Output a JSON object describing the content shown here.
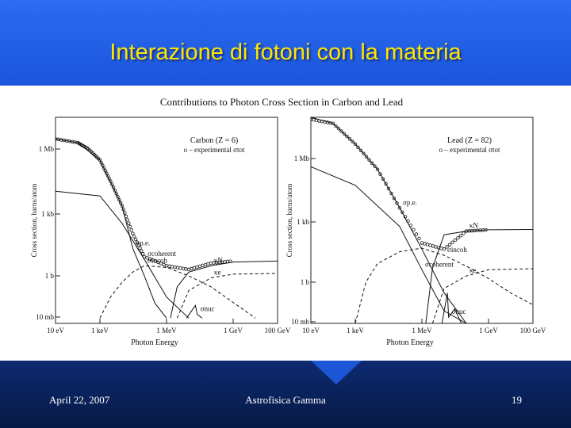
{
  "slide": {
    "title": "Interazione di fotoni con la materia",
    "footer_left": "April 22, 2007",
    "footer_center": "Astrofisica Gamma",
    "footer_right": "19"
  },
  "figure_title": "Contributions to Photon Cross Section in Carbon and Lead",
  "chart_data": [
    {
      "type": "line",
      "title": "Carbon (Z = 6)",
      "legend": "o – experimental σtot",
      "xlabel": "Photon Energy",
      "ylabel": "Cross section, barns/atom",
      "x_scale": "log",
      "y_scale": "log",
      "x_ticks": [
        "10 eV",
        "1 keV",
        "1 MeV",
        "1 GeV",
        "100 GeV"
      ],
      "y_ticks": [
        "1 Mb",
        "1 kb",
        "1 b",
        "10 mb"
      ],
      "series": [
        {
          "name": "σp.e.",
          "points": [
            [
              1e-05,
              3000000.0
            ],
            [
              0.0001,
              2000000.0
            ],
            [
              0.001,
              300000.0
            ],
            [
              0.01,
              2000.0
            ],
            [
              0.03,
              20.0
            ],
            [
              0.1,
              1
            ],
            [
              0.3,
              0.05
            ],
            [
              1,
              0.01
            ]
          ]
        },
        {
          "name": "σcoherent",
          "points": [
            [
              1e-05,
              10000.0
            ],
            [
              0.001,
              6000.0
            ],
            [
              0.01,
              300.0
            ],
            [
              0.1,
              6
            ],
            [
              1,
              0.1
            ],
            [
              10,
              0.01
            ]
          ]
        },
        {
          "name": "σincoh",
          "points": [
            [
              0.001,
              0.01
            ],
            [
              0.003,
              0.1
            ],
            [
              0.01,
              0.5
            ],
            [
              0.03,
              1.5
            ],
            [
              0.1,
              3
            ],
            [
              1,
              2.5
            ],
            [
              10,
              1
            ],
            [
              100,
              0.3
            ],
            [
              10000.0,
              0.01
            ]
          ]
        },
        {
          "name": "κN",
          "points": [
            [
              1.5,
              0.01
            ],
            [
              3,
              0.3
            ],
            [
              10,
              1.5
            ],
            [
              100.0,
              3
            ],
            [
              1000.0,
              4.5
            ],
            [
              100000.0,
              5
            ]
          ]
        },
        {
          "name": "κe",
          "points": [
            [
              3,
              0.01
            ],
            [
              10,
              0.2
            ],
            [
              100.0,
              0.8
            ],
            [
              1000.0,
              1.2
            ],
            [
              100000.0,
              1.3
            ]
          ]
        },
        {
          "name": "σnuc",
          "points": [
            [
              8,
              0.01
            ],
            [
              20,
              0.04
            ],
            [
              24,
              0.015
            ],
            [
              40,
              0.01
            ]
          ]
        },
        {
          "name": "experimental σtot",
          "points": [
            [
              1e-05,
              3000000.0
            ],
            [
              0.0001,
              2000000.0
            ],
            [
              0.0003,
              1000000.0
            ],
            [
              0.001,
              300000.0
            ],
            [
              0.003,
              30000.0
            ],
            [
              0.01,
              2000.0
            ],
            [
              0.03,
              100.0
            ],
            [
              0.1,
              8
            ],
            [
              1,
              3
            ],
            [
              10,
              2
            ],
            [
              100,
              4
            ],
            [
              1000.0,
              5
            ]
          ]
        }
      ]
    },
    {
      "type": "line",
      "title": "Lead (Z = 82)",
      "legend": "o – experimental σtot",
      "xlabel": "Photon Energy",
      "ylabel": "Cross section, barns/atom",
      "x_scale": "log",
      "y_scale": "log",
      "x_ticks": [
        "10 eV",
        "1 keV",
        "1 MeV",
        "1 GeV",
        "100 GeV"
      ],
      "y_ticks": [
        "1 Mb",
        "1 kb",
        "1 b",
        "10 mb"
      ],
      "series": [
        {
          "name": "σp.e.",
          "points": [
            [
              1e-05,
              100000000.0
            ],
            [
              0.0001,
              50000000.0
            ],
            [
              0.001,
              5000000.0
            ],
            [
              0.01,
              300000.0
            ],
            [
              0.1,
              4000.0
            ],
            [
              1,
              40
            ],
            [
              10,
              0.3
            ],
            [
              100,
              0.01
            ]
          ]
        },
        {
          "name": "σcoherent",
          "points": [
            [
              1e-05,
              400000.0
            ],
            [
              0.001,
              50000.0
            ],
            [
              0.1,
              500.0
            ],
            [
              1,
              4
            ],
            [
              10,
              0.04
            ],
            [
              100,
              0.01
            ]
          ]
        },
        {
          "name": "σincoh",
          "points": [
            [
              0.001,
              0.01
            ],
            [
              0.003,
              1
            ],
            [
              0.01,
              8
            ],
            [
              0.1,
              30
            ],
            [
              1,
              45
            ],
            [
              10,
              20
            ],
            [
              100,
              6
            ],
            [
              1000.0,
              1.5
            ],
            [
              10000.0,
              0.3
            ],
            [
              100000.0,
              0.08
            ]
          ]
        },
        {
          "name": "κN",
          "points": [
            [
              1.5,
              0.01
            ],
            [
              3,
              5
            ],
            [
              10,
              200.0
            ],
            [
              100.0,
              300.0
            ],
            [
              1000.0,
              350.0
            ],
            [
              100000.0,
              360.0
            ]
          ]
        },
        {
          "name": "κe",
          "points": [
            [
              3,
              0.01
            ],
            [
              10,
              0.5
            ],
            [
              100.0,
              2
            ],
            [
              1000.0,
              4
            ],
            [
              100000.0,
              4.5
            ]
          ]
        },
        {
          "name": "σnuc",
          "points": [
            [
              8,
              0.01
            ],
            [
              14,
              0.3
            ],
            [
              16,
              0.02
            ],
            [
              30,
              0.05
            ],
            [
              60,
              0.01
            ]
          ]
        },
        {
          "name": "experimental σtot",
          "points": [
            [
              1e-05,
              80000000.0
            ],
            [
              0.0001,
              50000000.0
            ],
            [
              0.001,
              5000000.0
            ],
            [
              0.01,
              300000.0
            ],
            [
              0.1,
              4000.0
            ],
            [
              1,
              80
            ],
            [
              10,
              40
            ],
            [
              100,
              300.0
            ],
            [
              1000.0,
              350.0
            ]
          ]
        }
      ]
    }
  ]
}
